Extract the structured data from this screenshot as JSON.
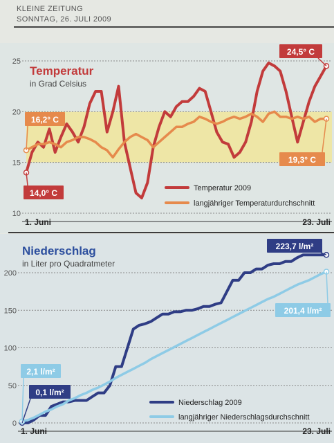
{
  "masthead": {
    "publication": "KLEINE ZEITUNG",
    "date": "SONNTAG, 26. JULI 2009"
  },
  "colors": {
    "temp_series": "#c23b3b",
    "temp_avg_series": "#e68a4c",
    "band_fill": "#eee6a6",
    "rain_series": "#2f3d85",
    "rain_avg_series": "#8ecbe6"
  },
  "chart_data": [
    {
      "type": "line",
      "title": "Temperatur",
      "subtitle": "in Grad Celsius",
      "x_start_label": "1. Juni",
      "x_end_label": "23. Juli",
      "ylim": [
        10,
        25
      ],
      "yticks": [
        10,
        15,
        20,
        25
      ],
      "band": [
        15,
        20
      ],
      "x": [
        0,
        1,
        2,
        3,
        4,
        5,
        6,
        7,
        8,
        9,
        10,
        11,
        12,
        13,
        14,
        15,
        16,
        17,
        18,
        19,
        20,
        21,
        22,
        23,
        24,
        25,
        26,
        27,
        28,
        29,
        30,
        31,
        32,
        33,
        34,
        35,
        36,
        37,
        38,
        39,
        40,
        41,
        42,
        43,
        44,
        45,
        46,
        47,
        48,
        49,
        50,
        51,
        52
      ],
      "series": [
        {
          "name": "Temperatur 2009",
          "values": [
            14.0,
            16.0,
            17.0,
            16.5,
            18.3,
            16.0,
            17.5,
            18.8,
            18.0,
            17.0,
            18.5,
            20.8,
            22.0,
            22.0,
            18.0,
            20.0,
            22.5,
            17.0,
            14.5,
            12.0,
            11.5,
            13.0,
            16.5,
            18.5,
            20.0,
            19.5,
            20.5,
            21.0,
            21.0,
            21.5,
            22.3,
            22.0,
            20.0,
            18.0,
            17.0,
            16.8,
            15.5,
            16.0,
            17.0,
            19.0,
            22.0,
            24.0,
            24.8,
            24.5,
            24.0,
            22.0,
            19.5,
            17.0,
            19.0,
            21.0,
            22.5,
            23.5,
            24.5
          ],
          "end_labels": [
            "14,0° C",
            "24,5° C"
          ]
        },
        {
          "name": "langjähriger Temperaturdurchschnitt",
          "values": [
            16.2,
            16.5,
            16.8,
            16.8,
            17.0,
            16.8,
            16.5,
            17.0,
            17.2,
            17.5,
            17.5,
            17.3,
            17.0,
            16.5,
            16.2,
            15.5,
            16.3,
            17.0,
            17.5,
            17.8,
            17.5,
            17.2,
            16.5,
            17.0,
            17.5,
            18.0,
            18.5,
            18.5,
            18.8,
            19.0,
            19.5,
            19.3,
            19.0,
            18.8,
            19.0,
            19.3,
            19.5,
            19.3,
            19.5,
            19.8,
            19.5,
            19.0,
            19.8,
            20.0,
            19.5,
            19.5,
            19.3,
            19.5,
            19.3,
            19.5,
            19.0,
            19.3,
            19.3
          ],
          "end_labels": [
            "16,2° C",
            "19,3° C"
          ]
        }
      ]
    },
    {
      "type": "line",
      "title": "Niederschlag",
      "subtitle": "in Liter pro Quadratmeter",
      "x_start_label": "1. Juni",
      "x_end_label": "23. Juli",
      "ylim": [
        0,
        200
      ],
      "yticks": [
        0,
        50,
        100,
        150,
        200
      ],
      "x": [
        0,
        1,
        2,
        3,
        4,
        5,
        6,
        7,
        8,
        9,
        10,
        11,
        12,
        13,
        14,
        15,
        16,
        17,
        18,
        19,
        20,
        21,
        22,
        23,
        24,
        25,
        26,
        27,
        28,
        29,
        30,
        31,
        32,
        33,
        34,
        35,
        36,
        37,
        38,
        39,
        40,
        41,
        42,
        43,
        44,
        45,
        46,
        47,
        48,
        49,
        50,
        51,
        52
      ],
      "series": [
        {
          "name": "Niederschlag 2009",
          "values": [
            0.1,
            0.1,
            4,
            10,
            10,
            22,
            25,
            28,
            28,
            30,
            30,
            30,
            35,
            40,
            40,
            50,
            75,
            75,
            100,
            125,
            130,
            132,
            135,
            140,
            145,
            145,
            148,
            148,
            150,
            150,
            152,
            155,
            155,
            158,
            160,
            175,
            190,
            190,
            200,
            200,
            205,
            205,
            210,
            212,
            212,
            215,
            215,
            220,
            223.7,
            223.7,
            223.7,
            223.7,
            223.7
          ],
          "end_labels": [
            "0,1 l/m²",
            "223,7 l/m²"
          ]
        },
        {
          "name": "langjähriger Niederschlagsdurchschnitt",
          "values": [
            2.1,
            4,
            7,
            11,
            15,
            18,
            22,
            25,
            30,
            33,
            37,
            40,
            44,
            47,
            51,
            55,
            60,
            64,
            68,
            72,
            76,
            80,
            85,
            89,
            93,
            97,
            101,
            105,
            109,
            113,
            117,
            121,
            125,
            129,
            133,
            137,
            141,
            145,
            149,
            153,
            157,
            161,
            165,
            168,
            172,
            176,
            180,
            184,
            187,
            190,
            194,
            198,
            201.4
          ],
          "end_labels": [
            "2,1 l/m²",
            "201,4 l/m²"
          ]
        }
      ]
    }
  ]
}
